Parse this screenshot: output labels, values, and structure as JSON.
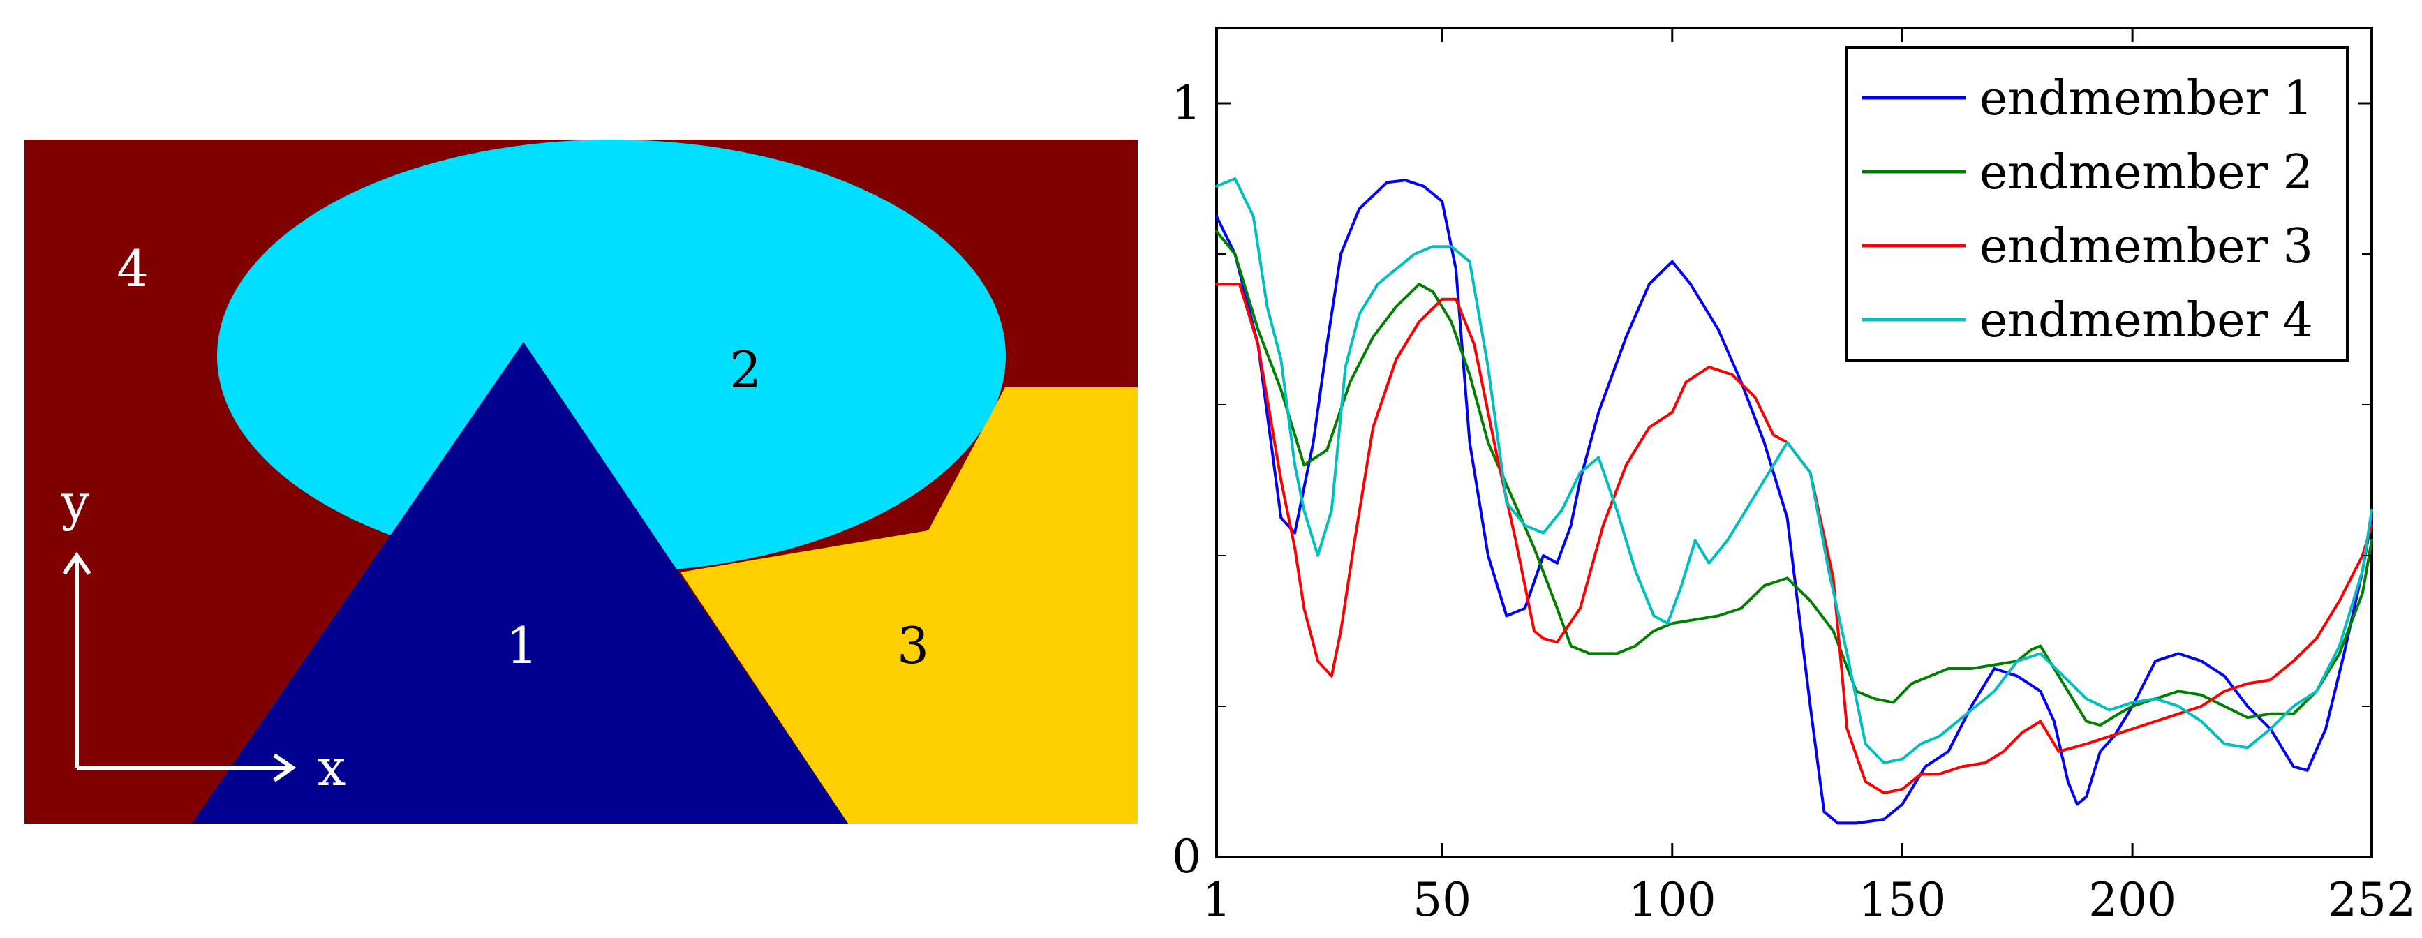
{
  "map": {
    "colors": {
      "region_1": "#00008f",
      "region_2": "#00dfff",
      "region_3": "#ffcf00",
      "region_4": "#800000"
    },
    "labels": {
      "region_1": "1",
      "region_2": "2",
      "region_3": "3",
      "region_4": "4"
    },
    "axis_labels": {
      "x": "x",
      "y": "y"
    }
  },
  "chart_data": {
    "type": "line",
    "xlim": [
      1,
      252
    ],
    "ylim": [
      0,
      1.1
    ],
    "x_ticks": [
      1,
      50,
      100,
      150,
      200,
      252
    ],
    "y_ticks": [
      0,
      1
    ],
    "y_minor_ticks": [
      0.2,
      0.4,
      0.6,
      0.8
    ],
    "legend_position": "top-right",
    "grid": false,
    "series": [
      {
        "name": "endmember 1",
        "color": "#0000ff",
        "points": [
          [
            1,
            0.85
          ],
          [
            5,
            0.8
          ],
          [
            10,
            0.68
          ],
          [
            15,
            0.45
          ],
          [
            18,
            0.43
          ],
          [
            22,
            0.55
          ],
          [
            25,
            0.68
          ],
          [
            28,
            0.8
          ],
          [
            32,
            0.86
          ],
          [
            38,
            0.895
          ],
          [
            42,
            0.898
          ],
          [
            46,
            0.89
          ],
          [
            50,
            0.87
          ],
          [
            53,
            0.78
          ],
          [
            56,
            0.55
          ],
          [
            60,
            0.4
          ],
          [
            64,
            0.32
          ],
          [
            68,
            0.33
          ],
          [
            72,
            0.4
          ],
          [
            75,
            0.39
          ],
          [
            78,
            0.44
          ],
          [
            80,
            0.5
          ],
          [
            84,
            0.59
          ],
          [
            90,
            0.69
          ],
          [
            95,
            0.76
          ],
          [
            100,
            0.79
          ],
          [
            104,
            0.76
          ],
          [
            110,
            0.7
          ],
          [
            115,
            0.63
          ],
          [
            120,
            0.55
          ],
          [
            125,
            0.45
          ],
          [
            130,
            0.2
          ],
          [
            133,
            0.06
          ],
          [
            136,
            0.045
          ],
          [
            140,
            0.045
          ],
          [
            146,
            0.05
          ],
          [
            150,
            0.07
          ],
          [
            155,
            0.12
          ],
          [
            160,
            0.14
          ],
          [
            165,
            0.2
          ],
          [
            170,
            0.25
          ],
          [
            175,
            0.24
          ],
          [
            180,
            0.22
          ],
          [
            183,
            0.18
          ],
          [
            186,
            0.1
          ],
          [
            188,
            0.07
          ],
          [
            190,
            0.08
          ],
          [
            193,
            0.14
          ],
          [
            196,
            0.16
          ],
          [
            200,
            0.2
          ],
          [
            205,
            0.26
          ],
          [
            210,
            0.27
          ],
          [
            215,
            0.26
          ],
          [
            220,
            0.24
          ],
          [
            225,
            0.2
          ],
          [
            230,
            0.17
          ],
          [
            235,
            0.12
          ],
          [
            238,
            0.115
          ],
          [
            242,
            0.17
          ],
          [
            246,
            0.27
          ],
          [
            250,
            0.38
          ],
          [
            252,
            0.45
          ]
        ]
      },
      {
        "name": "endmember 2",
        "color": "#008000",
        "points": [
          [
            1,
            0.83
          ],
          [
            5,
            0.8
          ],
          [
            10,
            0.7
          ],
          [
            15,
            0.62
          ],
          [
            18,
            0.56
          ],
          [
            20,
            0.52
          ],
          [
            25,
            0.54
          ],
          [
            30,
            0.63
          ],
          [
            35,
            0.69
          ],
          [
            40,
            0.73
          ],
          [
            45,
            0.76
          ],
          [
            48,
            0.75
          ],
          [
            52,
            0.71
          ],
          [
            56,
            0.64
          ],
          [
            60,
            0.55
          ],
          [
            65,
            0.48
          ],
          [
            70,
            0.41
          ],
          [
            75,
            0.33
          ],
          [
            78,
            0.28
          ],
          [
            82,
            0.27
          ],
          [
            88,
            0.27
          ],
          [
            92,
            0.28
          ],
          [
            96,
            0.3
          ],
          [
            100,
            0.31
          ],
          [
            105,
            0.315
          ],
          [
            110,
            0.32
          ],
          [
            115,
            0.33
          ],
          [
            120,
            0.36
          ],
          [
            125,
            0.37
          ],
          [
            130,
            0.34
          ],
          [
            135,
            0.3
          ],
          [
            140,
            0.22
          ],
          [
            144,
            0.21
          ],
          [
            148,
            0.205
          ],
          [
            152,
            0.23
          ],
          [
            156,
            0.24
          ],
          [
            160,
            0.25
          ],
          [
            165,
            0.25
          ],
          [
            170,
            0.255
          ],
          [
            175,
            0.26
          ],
          [
            178,
            0.275
          ],
          [
            180,
            0.28
          ],
          [
            185,
            0.23
          ],
          [
            190,
            0.18
          ],
          [
            193,
            0.175
          ],
          [
            197,
            0.19
          ],
          [
            200,
            0.2
          ],
          [
            205,
            0.21
          ],
          [
            210,
            0.22
          ],
          [
            215,
            0.215
          ],
          [
            220,
            0.2
          ],
          [
            225,
            0.185
          ],
          [
            230,
            0.19
          ],
          [
            235,
            0.19
          ],
          [
            240,
            0.22
          ],
          [
            245,
            0.27
          ],
          [
            250,
            0.35
          ],
          [
            252,
            0.42
          ]
        ]
      },
      {
        "name": "endmember 3",
        "color": "#ff0000",
        "points": [
          [
            1,
            0.76
          ],
          [
            6,
            0.76
          ],
          [
            10,
            0.68
          ],
          [
            15,
            0.5
          ],
          [
            18,
            0.41
          ],
          [
            20,
            0.33
          ],
          [
            23,
            0.26
          ],
          [
            26,
            0.24
          ],
          [
            28,
            0.3
          ],
          [
            31,
            0.42
          ],
          [
            35,
            0.57
          ],
          [
            40,
            0.66
          ],
          [
            45,
            0.71
          ],
          [
            50,
            0.74
          ],
          [
            53,
            0.74
          ],
          [
            57,
            0.68
          ],
          [
            62,
            0.53
          ],
          [
            66,
            0.42
          ],
          [
            70,
            0.3
          ],
          [
            72,
            0.29
          ],
          [
            75,
            0.285
          ],
          [
            80,
            0.33
          ],
          [
            85,
            0.44
          ],
          [
            90,
            0.52
          ],
          [
            95,
            0.57
          ],
          [
            100,
            0.59
          ],
          [
            103,
            0.63
          ],
          [
            108,
            0.65
          ],
          [
            113,
            0.64
          ],
          [
            118,
            0.61
          ],
          [
            122,
            0.56
          ],
          [
            125,
            0.55
          ],
          [
            130,
            0.51
          ],
          [
            135,
            0.37
          ],
          [
            138,
            0.17
          ],
          [
            142,
            0.1
          ],
          [
            146,
            0.085
          ],
          [
            150,
            0.09
          ],
          [
            154,
            0.11
          ],
          [
            158,
            0.11
          ],
          [
            163,
            0.12
          ],
          [
            168,
            0.125
          ],
          [
            172,
            0.14
          ],
          [
            176,
            0.165
          ],
          [
            180,
            0.18
          ],
          [
            184,
            0.14
          ],
          [
            190,
            0.15
          ],
          [
            195,
            0.16
          ],
          [
            200,
            0.17
          ],
          [
            205,
            0.18
          ],
          [
            210,
            0.19
          ],
          [
            215,
            0.2
          ],
          [
            220,
            0.22
          ],
          [
            225,
            0.23
          ],
          [
            230,
            0.235
          ],
          [
            235,
            0.26
          ],
          [
            240,
            0.29
          ],
          [
            245,
            0.34
          ],
          [
            250,
            0.4
          ],
          [
            252,
            0.44
          ]
        ]
      },
      {
        "name": "endmember 4",
        "color": "#00bfbf",
        "points": [
          [
            1,
            0.89
          ],
          [
            5,
            0.9
          ],
          [
            9,
            0.85
          ],
          [
            12,
            0.73
          ],
          [
            15,
            0.66
          ],
          [
            18,
            0.52
          ],
          [
            20,
            0.46
          ],
          [
            23,
            0.4
          ],
          [
            26,
            0.46
          ],
          [
            29,
            0.65
          ],
          [
            32,
            0.72
          ],
          [
            36,
            0.76
          ],
          [
            40,
            0.78
          ],
          [
            44,
            0.8
          ],
          [
            48,
            0.81
          ],
          [
            52,
            0.81
          ],
          [
            56,
            0.79
          ],
          [
            60,
            0.65
          ],
          [
            64,
            0.47
          ],
          [
            68,
            0.44
          ],
          [
            72,
            0.43
          ],
          [
            76,
            0.46
          ],
          [
            80,
            0.51
          ],
          [
            84,
            0.53
          ],
          [
            88,
            0.46
          ],
          [
            92,
            0.38
          ],
          [
            96,
            0.32
          ],
          [
            99,
            0.31
          ],
          [
            102,
            0.36
          ],
          [
            105,
            0.42
          ],
          [
            108,
            0.39
          ],
          [
            112,
            0.42
          ],
          [
            116,
            0.46
          ],
          [
            120,
            0.5
          ],
          [
            125,
            0.55
          ],
          [
            130,
            0.51
          ],
          [
            134,
            0.38
          ],
          [
            138,
            0.27
          ],
          [
            142,
            0.15
          ],
          [
            146,
            0.125
          ],
          [
            150,
            0.13
          ],
          [
            154,
            0.15
          ],
          [
            158,
            0.16
          ],
          [
            162,
            0.18
          ],
          [
            166,
            0.2
          ],
          [
            170,
            0.22
          ],
          [
            175,
            0.26
          ],
          [
            180,
            0.27
          ],
          [
            185,
            0.24
          ],
          [
            190,
            0.21
          ],
          [
            195,
            0.195
          ],
          [
            200,
            0.205
          ],
          [
            205,
            0.21
          ],
          [
            210,
            0.2
          ],
          [
            215,
            0.18
          ],
          [
            220,
            0.15
          ],
          [
            225,
            0.145
          ],
          [
            230,
            0.17
          ],
          [
            235,
            0.2
          ],
          [
            240,
            0.22
          ],
          [
            245,
            0.28
          ],
          [
            250,
            0.38
          ],
          [
            252,
            0.46
          ]
        ]
      }
    ]
  }
}
